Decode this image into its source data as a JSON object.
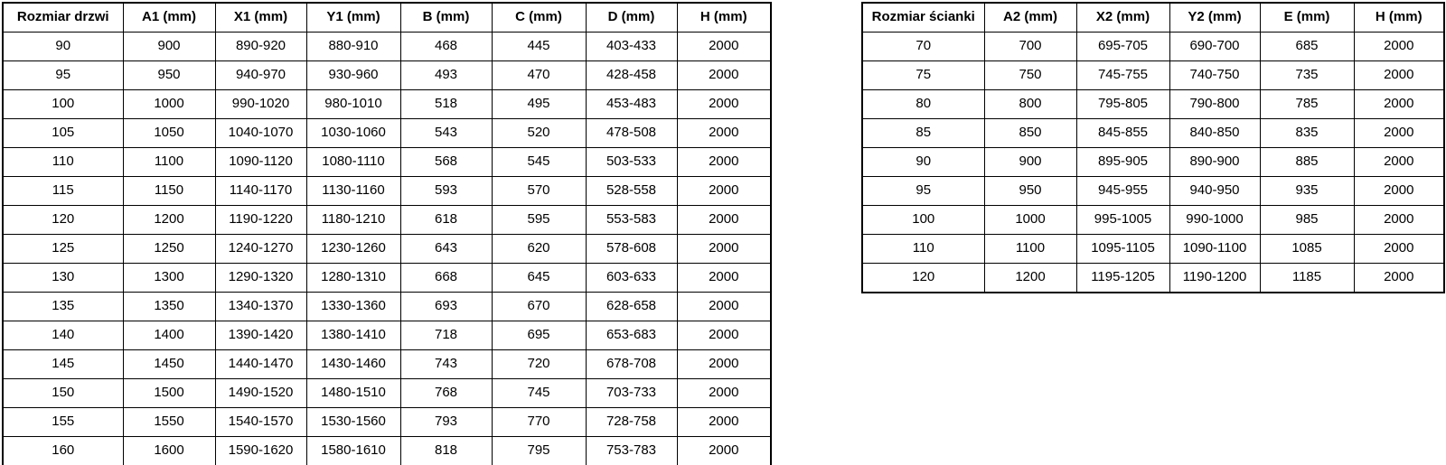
{
  "page": {
    "background_color": "#ffffff",
    "text_color": "#000000",
    "border_color": "#000000"
  },
  "door_table": {
    "headers": [
      "Rozmiar drzwi",
      "A1 (mm)",
      "X1 (mm)",
      "Y1 (mm)",
      "B (mm)",
      "C (mm)",
      "D (mm)",
      "H (mm)"
    ],
    "rows": [
      [
        "90",
        "900",
        "890-920",
        "880-910",
        "468",
        "445",
        "403-433",
        "2000"
      ],
      [
        "95",
        "950",
        "940-970",
        "930-960",
        "493",
        "470",
        "428-458",
        "2000"
      ],
      [
        "100",
        "1000",
        "990-1020",
        "980-1010",
        "518",
        "495",
        "453-483",
        "2000"
      ],
      [
        "105",
        "1050",
        "1040-1070",
        "1030-1060",
        "543",
        "520",
        "478-508",
        "2000"
      ],
      [
        "110",
        "1100",
        "1090-1120",
        "1080-1110",
        "568",
        "545",
        "503-533",
        "2000"
      ],
      [
        "115",
        "1150",
        "1140-1170",
        "1130-1160",
        "593",
        "570",
        "528-558",
        "2000"
      ],
      [
        "120",
        "1200",
        "1190-1220",
        "1180-1210",
        "618",
        "595",
        "553-583",
        "2000"
      ],
      [
        "125",
        "1250",
        "1240-1270",
        "1230-1260",
        "643",
        "620",
        "578-608",
        "2000"
      ],
      [
        "130",
        "1300",
        "1290-1320",
        "1280-1310",
        "668",
        "645",
        "603-633",
        "2000"
      ],
      [
        "135",
        "1350",
        "1340-1370",
        "1330-1360",
        "693",
        "670",
        "628-658",
        "2000"
      ],
      [
        "140",
        "1400",
        "1390-1420",
        "1380-1410",
        "718",
        "695",
        "653-683",
        "2000"
      ],
      [
        "145",
        "1450",
        "1440-1470",
        "1430-1460",
        "743",
        "720",
        "678-708",
        "2000"
      ],
      [
        "150",
        "1500",
        "1490-1520",
        "1480-1510",
        "768",
        "745",
        "703-733",
        "2000"
      ],
      [
        "155",
        "1550",
        "1540-1570",
        "1530-1560",
        "793",
        "770",
        "728-758",
        "2000"
      ],
      [
        "160",
        "1600",
        "1590-1620",
        "1580-1610",
        "818",
        "795",
        "753-783",
        "2000"
      ]
    ]
  },
  "wall_table": {
    "headers": [
      "Rozmiar ścianki",
      "A2 (mm)",
      "X2 (mm)",
      "Y2 (mm)",
      "E (mm)",
      "H (mm)"
    ],
    "rows": [
      [
        "70",
        "700",
        "695-705",
        "690-700",
        "685",
        "2000"
      ],
      [
        "75",
        "750",
        "745-755",
        "740-750",
        "735",
        "2000"
      ],
      [
        "80",
        "800",
        "795-805",
        "790-800",
        "785",
        "2000"
      ],
      [
        "85",
        "850",
        "845-855",
        "840-850",
        "835",
        "2000"
      ],
      [
        "90",
        "900",
        "895-905",
        "890-900",
        "885",
        "2000"
      ],
      [
        "95",
        "950",
        "945-955",
        "940-950",
        "935",
        "2000"
      ],
      [
        "100",
        "1000",
        "995-1005",
        "990-1000",
        "985",
        "2000"
      ],
      [
        "110",
        "1100",
        "1095-1105",
        "1090-1100",
        "1085",
        "2000"
      ],
      [
        "120",
        "1200",
        "1195-1205",
        "1190-1200",
        "1185",
        "2000"
      ]
    ]
  }
}
